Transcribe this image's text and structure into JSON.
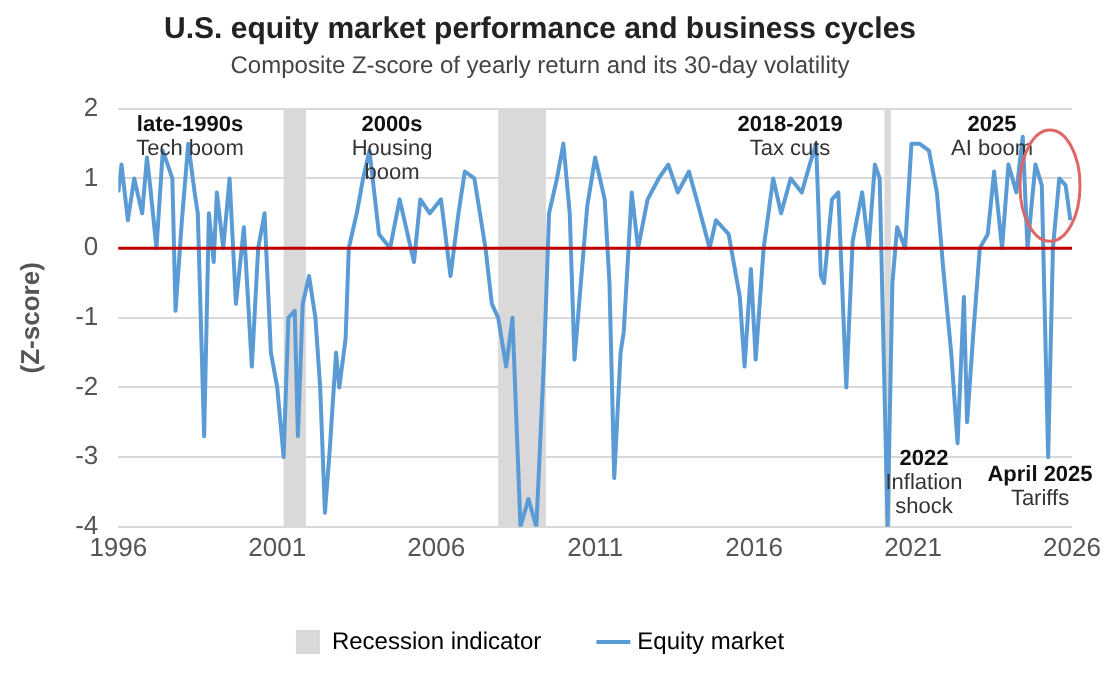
{
  "chart_data": {
    "type": "line",
    "title": "U.S. equity market performance and business cycles",
    "subtitle": "Composite Z-score of yearly return and its 30-day volatility",
    "ylabel": "(Z-score)",
    "x": [
      1996.0,
      1996.1,
      1996.3,
      1996.5,
      1996.75,
      1996.9,
      1997.0,
      1997.2,
      1997.4,
      1997.7,
      1997.8,
      1998.0,
      1998.2,
      1998.4,
      1998.5,
      1998.7,
      1998.85,
      1999.0,
      1999.1,
      1999.3,
      1999.5,
      1999.7,
      1999.95,
      2000.2,
      2000.4,
      2000.6,
      2000.8,
      2001.0,
      2001.2,
      2001.35,
      2001.55,
      2001.65,
      2001.8,
      2002.0,
      2002.2,
      2002.35,
      2002.5,
      2002.65,
      2002.85,
      2002.95,
      2003.15,
      2003.25,
      2003.5,
      2003.7,
      2003.9,
      2004.2,
      2004.55,
      2004.85,
      2005.3,
      2005.5,
      2005.8,
      2006.15,
      2006.45,
      2006.7,
      2006.9,
      2007.2,
      2007.55,
      2007.75,
      2007.95,
      2008.2,
      2008.4,
      2008.65,
      2008.9,
      2009.15,
      2009.3,
      2009.4,
      2009.55,
      2009.8,
      2010.0,
      2010.2,
      2010.35,
      2010.55,
      2010.75,
      2011.0,
      2011.3,
      2011.45,
      2011.6,
      2011.8,
      2011.9,
      2012.15,
      2012.35,
      2012.65,
      2013.0,
      2013.3,
      2013.6,
      2013.95,
      2014.25,
      2014.6,
      2014.8,
      2015.2,
      2015.55,
      2015.7,
      2015.9,
      2016.05,
      2016.3,
      2016.6,
      2016.85,
      2017.15,
      2017.5,
      2017.75,
      2017.95,
      2018.1,
      2018.2,
      2018.45,
      2018.65,
      2018.9,
      2019.1,
      2019.4,
      2019.6,
      2019.8,
      2019.95,
      2020.2,
      2020.35,
      2020.5,
      2020.75,
      2020.95,
      2021.2,
      2021.5,
      2021.75,
      2021.95,
      2022.2,
      2022.4,
      2022.6,
      2022.7,
      2022.9,
      2023.1,
      2023.35,
      2023.55,
      2023.8,
      2024.0,
      2024.25,
      2024.45,
      2024.6,
      2024.85,
      2025.05,
      2025.25,
      2025.4,
      2025.6,
      2025.8,
      2025.95
    ],
    "series": [
      {
        "name": "Equity market",
        "color": "#5b9bd5",
        "values": [
          0.8,
          1.2,
          0.4,
          1.0,
          0.5,
          1.3,
          0.9,
          0.0,
          1.4,
          1.0,
          -0.9,
          0.4,
          1.5,
          0.8,
          0.5,
          -2.7,
          0.5,
          -0.2,
          0.8,
          0.0,
          1.0,
          -0.8,
          0.3,
          -1.7,
          0.0,
          0.5,
          -1.5,
          -2.0,
          -3.0,
          -1.0,
          -0.9,
          -2.7,
          -0.8,
          -0.4,
          -1.0,
          -2.0,
          -3.8,
          -2.9,
          -1.5,
          -2.0,
          -1.3,
          0.0,
          0.5,
          1.0,
          1.4,
          0.2,
          0.0,
          0.7,
          -0.2,
          0.7,
          0.5,
          0.7,
          -0.4,
          0.5,
          1.1,
          1.0,
          0.0,
          -0.8,
          -1.0,
          -1.7,
          -1.0,
          -4.0,
          -3.6,
          -4.0,
          -2.5,
          -1.5,
          0.5,
          1.0,
          1.5,
          0.5,
          -1.6,
          -0.5,
          0.6,
          1.3,
          0.7,
          -0.5,
          -3.3,
          -1.5,
          -1.2,
          0.8,
          0.0,
          0.7,
          1.0,
          1.2,
          0.8,
          1.1,
          0.6,
          0.0,
          0.4,
          0.2,
          -0.7,
          -1.7,
          -0.3,
          -1.6,
          0.0,
          1.0,
          0.5,
          1.0,
          0.8,
          1.2,
          1.5,
          -0.4,
          -0.5,
          0.7,
          0.8,
          -2.0,
          0.1,
          0.8,
          0.0,
          1.2,
          1.0,
          -4.0,
          -0.5,
          0.3,
          0.0,
          1.5,
          1.5,
          1.4,
          0.8,
          -0.3,
          -1.5,
          -2.8,
          -0.7,
          -2.5,
          -1.2,
          0.0,
          0.2,
          1.1,
          0.0,
          1.2,
          0.8,
          1.6,
          0.0,
          1.2,
          0.9,
          -3.0,
          0.0,
          1.0,
          0.9,
          0.4
        ]
      }
    ],
    "xlim": [
      1996,
      2026
    ],
    "xticks": [
      1996,
      2001,
      2006,
      2011,
      2016,
      2021,
      2026
    ],
    "ylim": [
      -4,
      2
    ],
    "yticks": [
      -4,
      -3,
      -2,
      -1,
      0,
      1,
      2
    ],
    "grid": "y",
    "legend": "bottom",
    "marker": "none",
    "ref_lines": [
      {
        "axis": "y",
        "value": 0,
        "color": "#c00000"
      }
    ],
    "bands": [
      {
        "axis": "x",
        "from": 2001.2,
        "to": 2001.9,
        "label": "Recession indicator",
        "color": "#d9d9d9"
      },
      {
        "axis": "x",
        "from": 2007.95,
        "to": 2009.45,
        "color": "#d9d9d9"
      },
      {
        "axis": "x",
        "from": 2020.1,
        "to": 2020.3,
        "color": "#d9d9d9"
      }
    ],
    "annotations": [
      "late-1990s\nTech boom",
      "2000s\nHousing\nboom",
      "2018-2019\nTax cuts",
      "2025\nAI boom",
      "2022\nInflation\nshock",
      "April 2025\nTariffs"
    ]
  }
}
